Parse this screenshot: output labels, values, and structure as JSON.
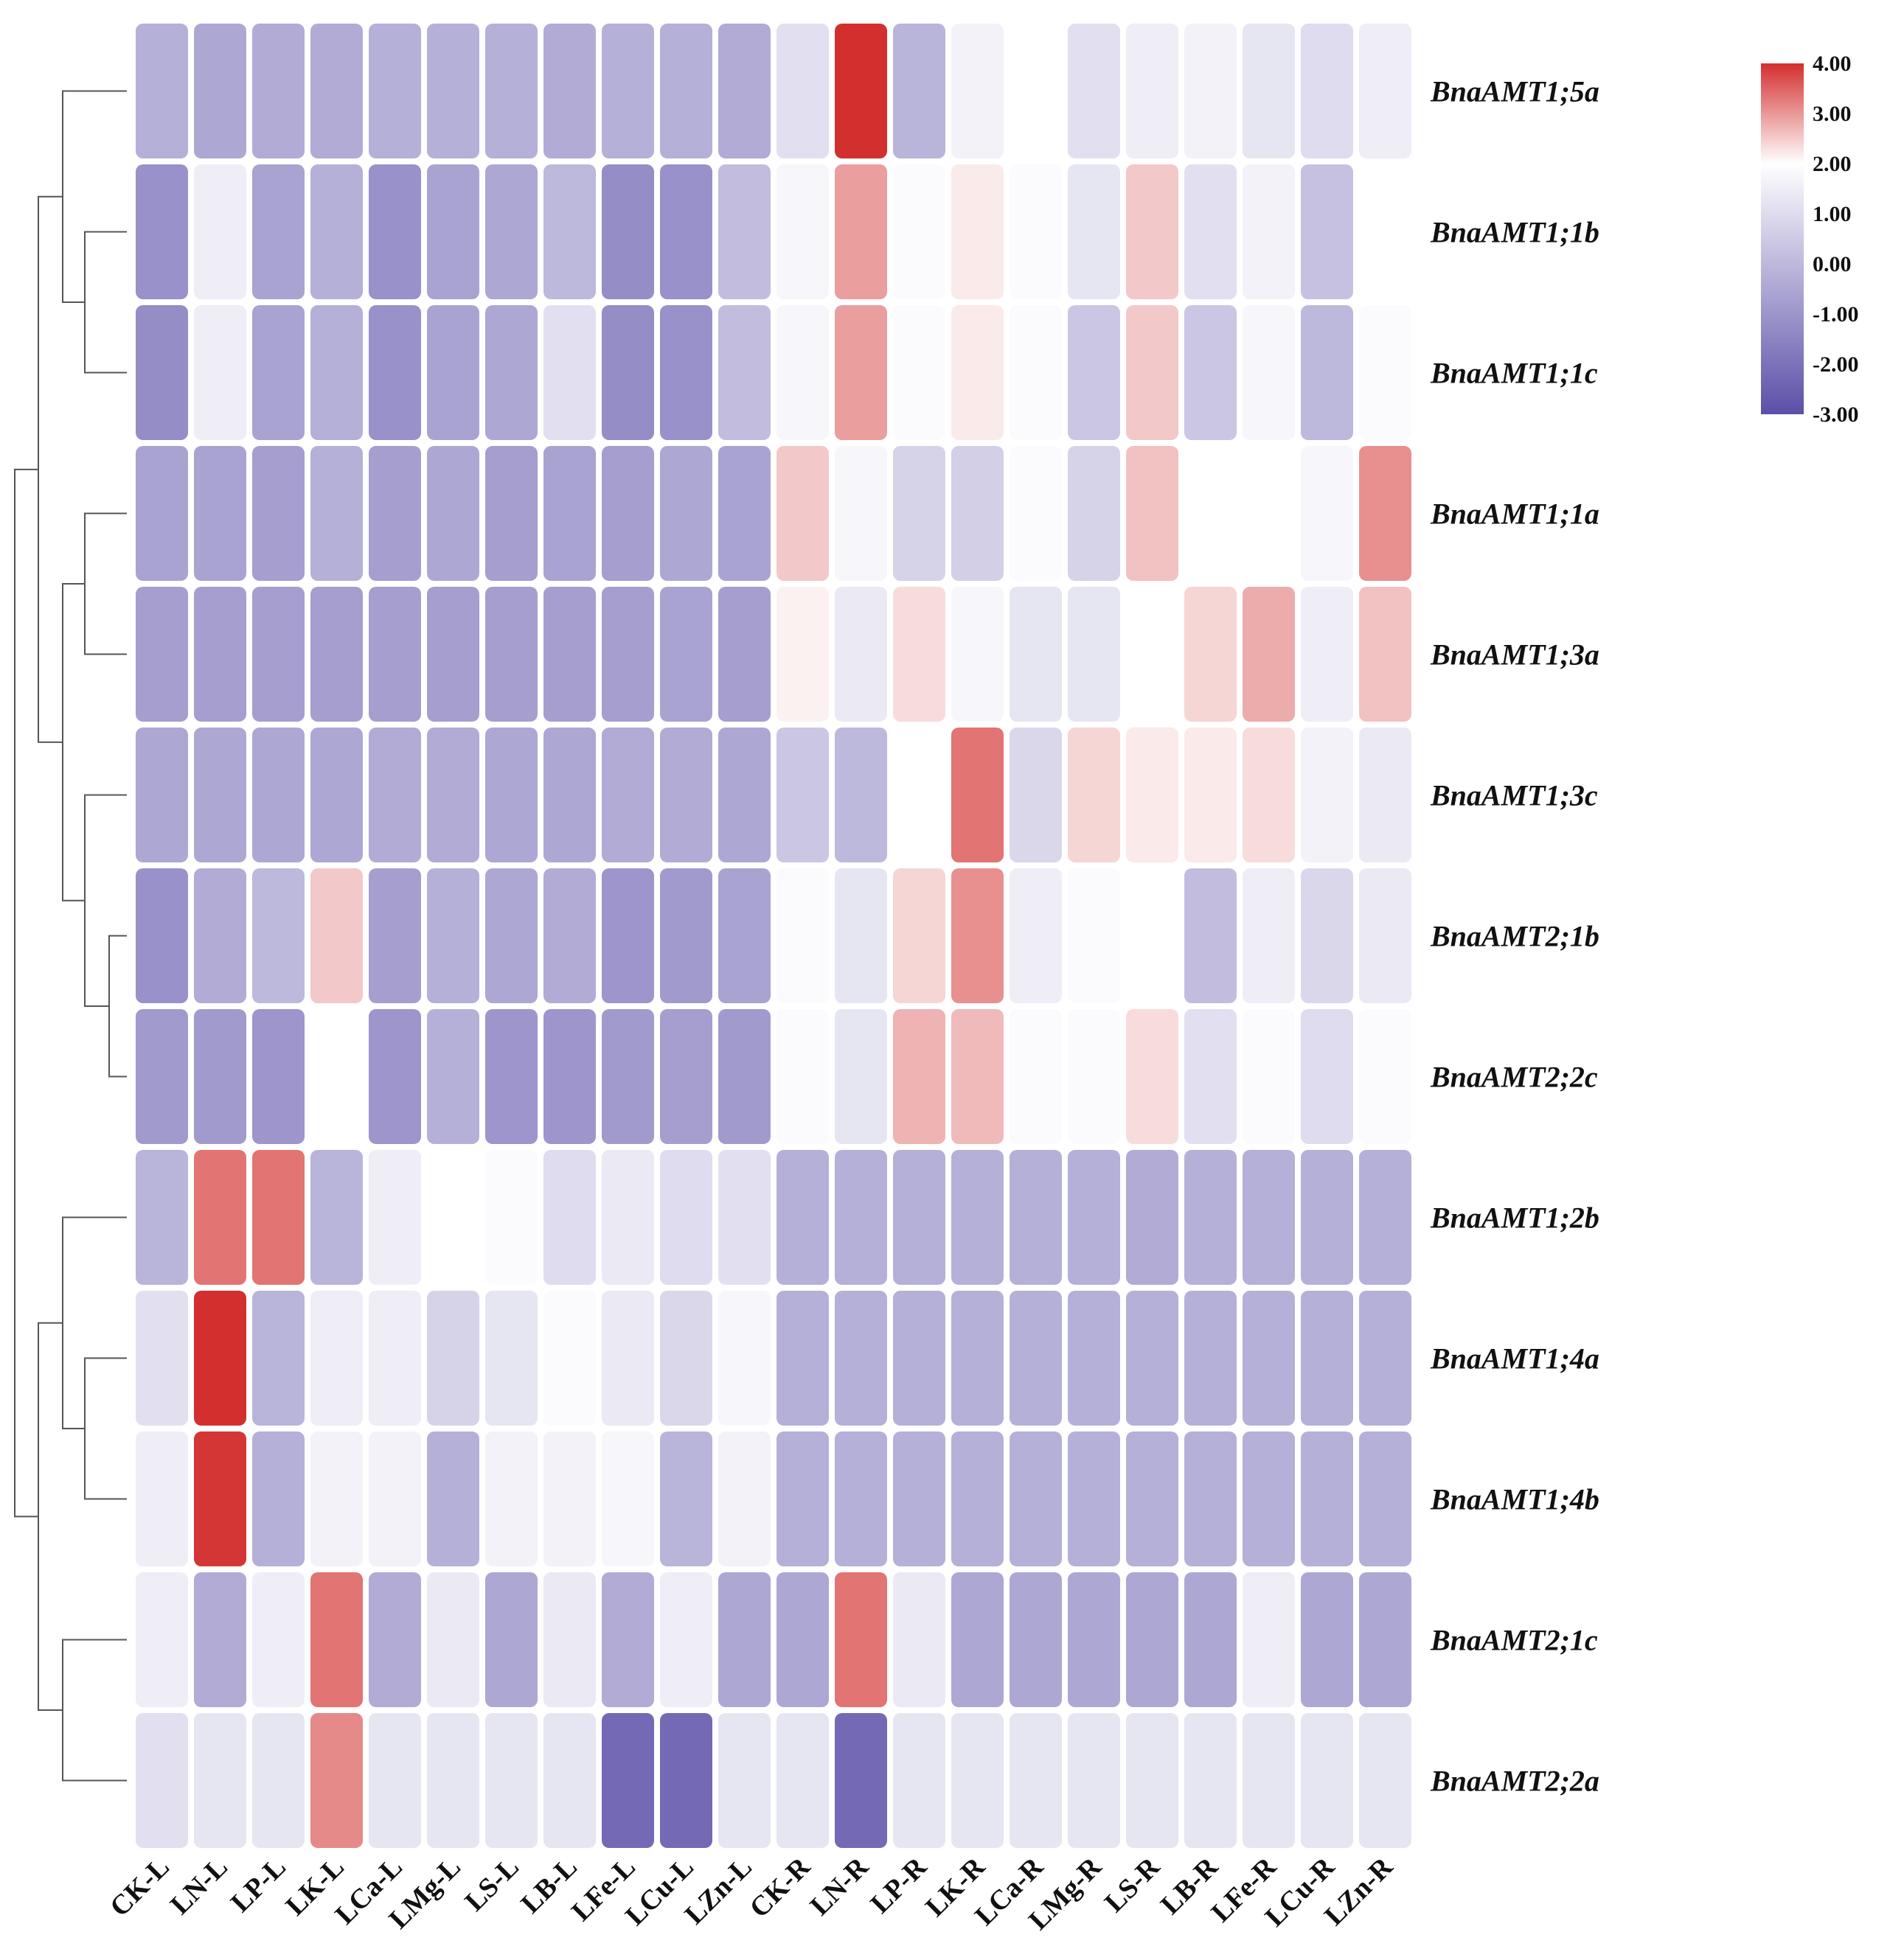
{
  "chart_data": {
    "type": "heatmap",
    "title": "",
    "columns": [
      "CK-L",
      "LN-L",
      "LP-L",
      "LK-L",
      "LCa-L",
      "LMg-L",
      "LS-L",
      "LB-L",
      "LFe-L",
      "LCu-L",
      "LZn-L",
      "CK-R",
      "LN-R",
      "LP-R",
      "LK-R",
      "LCa-R",
      "LMg-R",
      "LS-R",
      "LB-R",
      "LFe-R",
      "LCu-R",
      "LZn-R"
    ],
    "rows": [
      "BnaAMT1;5a",
      "BnaAMT1;1b",
      "BnaAMT1;1c",
      "BnaAMT1;1a",
      "BnaAMT1;3a",
      "BnaAMT1;3c",
      "BnaAMT2;1b",
      "BnaAMT2;2c",
      "BnaAMT1;2b",
      "BnaAMT1;4a",
      "BnaAMT1;4b",
      "BnaAMT2;1c",
      "BnaAMT2;2a"
    ],
    "values": [
      [
        -0.8,
        -1.0,
        -0.9,
        -0.9,
        -0.8,
        -0.8,
        -0.8,
        -0.9,
        -0.8,
        -0.8,
        -0.9,
        0.3,
        4.0,
        -0.7,
        0.7,
        1.0,
        0.3,
        0.6,
        0.7,
        0.4,
        0.2,
        0.6
      ],
      [
        -1.5,
        0.6,
        -1.1,
        -0.8,
        -1.5,
        -1.1,
        -1.0,
        -0.6,
        -1.6,
        -1.5,
        -0.5,
        0.8,
        2.4,
        0.9,
        1.3,
        0.9,
        0.4,
        1.8,
        0.3,
        0.7,
        -0.4,
        1.0
      ],
      [
        -1.6,
        0.6,
        -1.1,
        -0.8,
        -1.5,
        -1.1,
        -1.0,
        0.3,
        -1.6,
        -1.5,
        -0.5,
        0.8,
        2.4,
        0.9,
        1.3,
        0.9,
        -0.3,
        1.8,
        -0.3,
        0.8,
        -0.6,
        0.9
      ],
      [
        -1.1,
        -1.1,
        -1.2,
        -0.8,
        -1.2,
        -1.0,
        -1.2,
        -1.1,
        -1.2,
        -1.0,
        -1.1,
        1.8,
        0.8,
        0.0,
        -0.1,
        0.9,
        0.0,
        1.9,
        1.0,
        1.0,
        0.8,
        2.6
      ],
      [
        -1.2,
        -1.2,
        -1.2,
        -1.2,
        -1.2,
        -1.2,
        -1.2,
        -1.2,
        -1.2,
        -1.1,
        -1.2,
        1.2,
        0.5,
        1.5,
        0.8,
        0.4,
        0.4,
        1.0,
        1.6,
        2.2,
        0.6,
        1.9
      ],
      [
        -1.0,
        -1.0,
        -1.0,
        -1.0,
        -0.9,
        -0.9,
        -1.0,
        -1.0,
        -0.9,
        -0.9,
        -1.0,
        -0.3,
        -0.6,
        1.0,
        3.0,
        0.1,
        1.6,
        1.3,
        1.3,
        1.5,
        0.7,
        0.5
      ],
      [
        -1.5,
        -0.9,
        -0.6,
        1.8,
        -1.2,
        -0.8,
        -1.0,
        -0.9,
        -1.4,
        -1.3,
        -1.1,
        0.9,
        0.4,
        1.6,
        2.6,
        0.6,
        0.9,
        1.0,
        -0.5,
        0.6,
        0.1,
        0.5
      ],
      [
        -1.3,
        -1.3,
        -1.4,
        1.0,
        -1.4,
        -0.8,
        -1.4,
        -1.4,
        -1.3,
        -1.2,
        -1.3,
        0.9,
        0.4,
        2.1,
        2.0,
        0.9,
        0.9,
        1.5,
        0.3,
        0.9,
        0.2,
        0.9
      ],
      [
        -0.7,
        3.0,
        3.0,
        -0.7,
        0.6,
        1.0,
        0.9,
        0.2,
        0.5,
        0.2,
        0.3,
        -0.8,
        -0.8,
        -0.8,
        -0.8,
        -0.8,
        -0.8,
        -0.9,
        -0.8,
        -0.8,
        -0.8,
        -0.8
      ],
      [
        0.3,
        4.0,
        -0.7,
        0.6,
        0.6,
        0.0,
        0.4,
        0.9,
        0.5,
        0.1,
        0.8,
        -0.8,
        -0.8,
        -0.8,
        -0.8,
        -0.8,
        -0.8,
        -0.8,
        -0.8,
        -0.8,
        -0.8,
        -0.8
      ],
      [
        0.6,
        3.9,
        -0.8,
        0.7,
        0.7,
        -0.8,
        0.7,
        0.7,
        0.8,
        -0.7,
        0.7,
        -0.8,
        -0.8,
        -0.8,
        -0.8,
        -0.8,
        -0.8,
        -0.8,
        -0.8,
        -0.8,
        -0.8,
        -0.8
      ],
      [
        0.6,
        -0.9,
        0.6,
        3.0,
        -0.9,
        0.5,
        -1.0,
        0.5,
        -0.9,
        0.6,
        -1.0,
        -1.0,
        3.0,
        0.5,
        -1.0,
        -1.0,
        -1.0,
        -1.0,
        -1.0,
        0.6,
        -1.0,
        -1.0
      ],
      [
        0.3,
        0.4,
        0.4,
        2.7,
        0.4,
        0.4,
        0.4,
        0.4,
        -2.4,
        -2.4,
        0.4,
        0.4,
        -2.4,
        0.4,
        0.4,
        0.4,
        0.4,
        0.4,
        0.4,
        0.4,
        0.4,
        0.4
      ]
    ],
    "color_scale": {
      "min": -3.0,
      "mid": 1.0,
      "max": 4.0,
      "low_color": "#5b4fa8",
      "mid_color": "#ffffff",
      "high_color": "#d32f2f"
    },
    "legend": {
      "position": "top-right",
      "ticks": [
        "4.00",
        "3.00",
        "2.00",
        "1.00",
        "0.00",
        "-1.00",
        "-2.00",
        "-3.00"
      ]
    },
    "row_dendrogram": true
  }
}
